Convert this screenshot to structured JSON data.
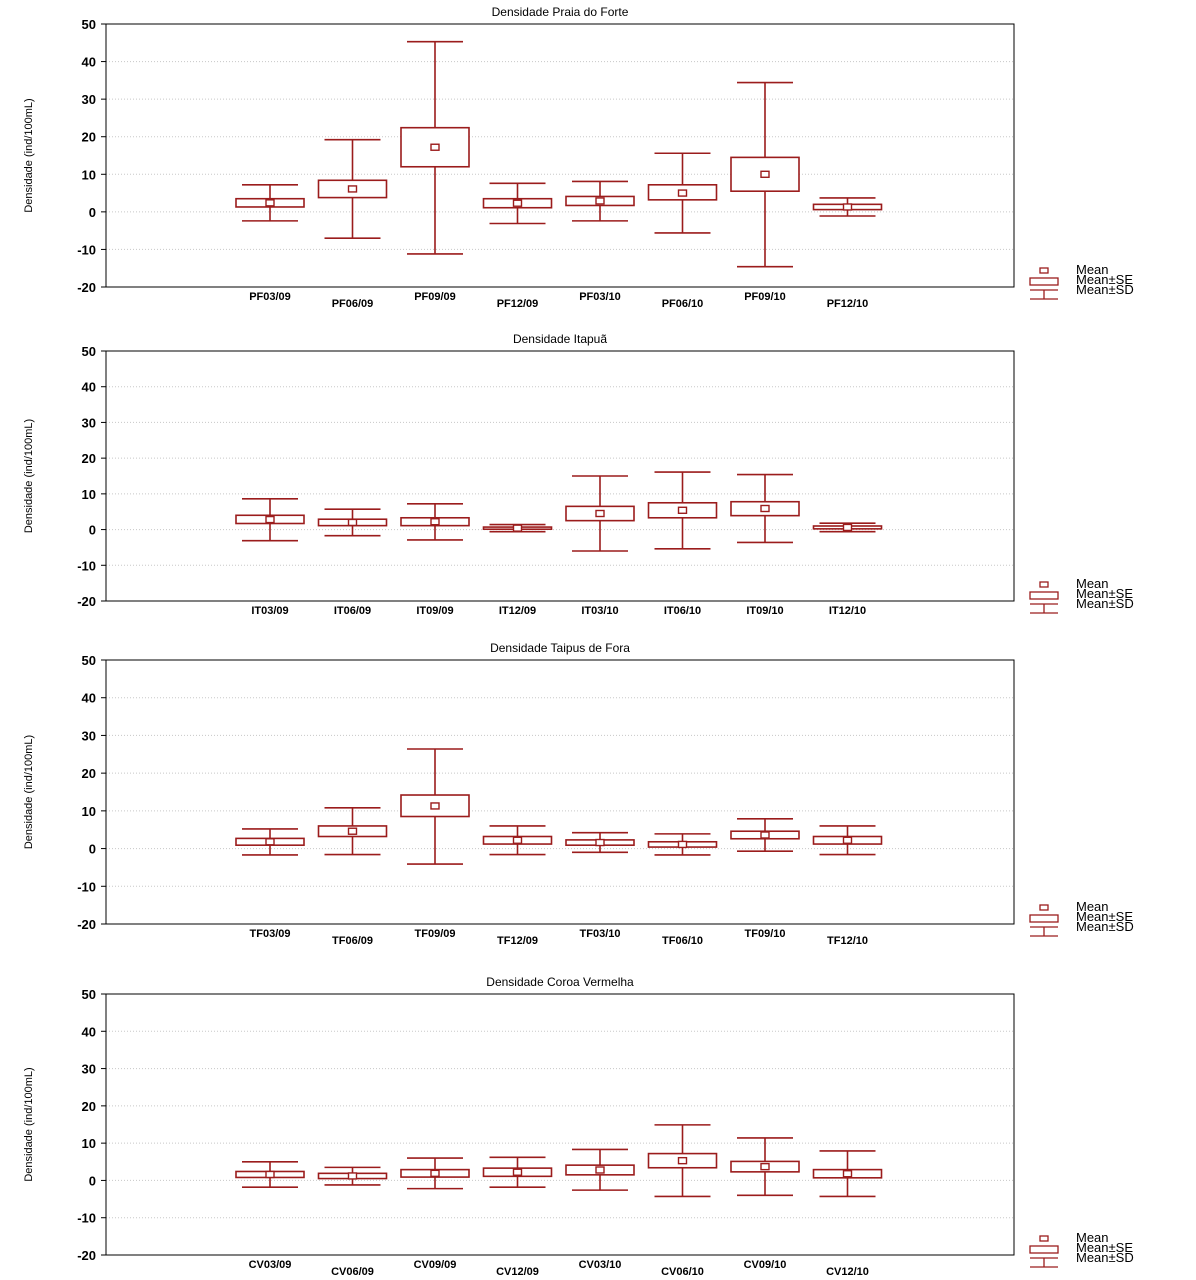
{
  "chart_data": [
    {
      "type": "box",
      "title": "Densidade Praia do Forte",
      "ylabel": "Densidade (ind/100mL)",
      "ylim": [
        -20,
        50
      ],
      "yticks": [
        -20,
        -10,
        0,
        10,
        20,
        30,
        40,
        50
      ],
      "categories": [
        "PF03/09",
        "PF06/09",
        "PF09/09",
        "PF12/09",
        "PF03/10",
        "PF06/10",
        "PF09/10",
        "PF12/10"
      ],
      "label_staggered": true,
      "grid": true,
      "legend_position": "bottom-right",
      "legend": [
        "Mean",
        "Mean±SE",
        "Mean±SD"
      ],
      "color": "#9b1c1c",
      "mean": [
        2.4,
        6.1,
        17.2,
        2.3,
        2.9,
        5.0,
        10.0,
        1.3
      ],
      "se_low": [
        1.3,
        3.8,
        12.0,
        1.1,
        1.7,
        3.2,
        5.5,
        0.6
      ],
      "se_high": [
        3.5,
        8.4,
        22.4,
        3.5,
        4.1,
        7.2,
        14.5,
        2.0
      ],
      "sd_low": [
        -2.4,
        -7.0,
        -11.2,
        -3.1,
        -2.4,
        -5.6,
        -14.6,
        -1.1
      ],
      "sd_high": [
        7.2,
        19.2,
        45.3,
        7.6,
        8.1,
        15.6,
        34.4,
        3.7
      ]
    },
    {
      "type": "box",
      "title": "Densidade Itapuã",
      "ylabel": "Densidade (ind/100mL)",
      "ylim": [
        -20,
        50
      ],
      "yticks": [
        -20,
        -10,
        0,
        10,
        20,
        30,
        40,
        50
      ],
      "categories": [
        "IT03/09",
        "IT06/09",
        "IT09/09",
        "IT12/09",
        "IT03/10",
        "IT06/10",
        "IT09/10",
        "IT12/10"
      ],
      "label_staggered": false,
      "grid": true,
      "legend_position": "bottom-right",
      "legend": [
        "Mean",
        "Mean±SE",
        "Mean±SD"
      ],
      "color": "#9b1c1c",
      "mean": [
        2.8,
        2.0,
        2.2,
        0.4,
        4.5,
        5.4,
        5.9,
        0.6
      ],
      "se_low": [
        1.7,
        1.1,
        1.1,
        0.1,
        2.5,
        3.3,
        3.9,
        0.2
      ],
      "se_high": [
        4.0,
        2.9,
        3.3,
        0.7,
        6.5,
        7.5,
        7.8,
        1.0
      ],
      "sd_low": [
        -3.1,
        -1.7,
        -2.9,
        -0.6,
        -6.0,
        -5.4,
        -3.6,
        -0.6
      ],
      "sd_high": [
        8.6,
        5.7,
        7.2,
        1.4,
        15.0,
        16.1,
        15.4,
        1.8
      ]
    },
    {
      "type": "box",
      "title": "Densidade Taipus de Fora",
      "ylabel": "Densidade (ind/100mL)",
      "ylim": [
        -20,
        50
      ],
      "yticks": [
        -20,
        -10,
        0,
        10,
        20,
        30,
        40,
        50
      ],
      "categories": [
        "TF03/09",
        "TF06/09",
        "TF09/09",
        "TF12/09",
        "TF03/10",
        "TF06/10",
        "TF09/10",
        "TF12/10"
      ],
      "label_staggered": true,
      "grid": true,
      "legend_position": "bottom-right",
      "legend": [
        "Mean",
        "Mean±SE",
        "Mean±SD"
      ],
      "color": "#9b1c1c",
      "mean": [
        1.8,
        4.6,
        11.3,
        2.2,
        1.6,
        1.1,
        3.6,
        2.2
      ],
      "se_low": [
        0.9,
        3.2,
        8.5,
        1.2,
        0.9,
        0.4,
        2.6,
        1.2
      ],
      "se_high": [
        2.7,
        6.0,
        14.2,
        3.2,
        2.3,
        1.8,
        4.6,
        3.2
      ],
      "sd_low": [
        -1.7,
        -1.6,
        -4.1,
        -1.6,
        -1.0,
        -1.7,
        -0.7,
        -1.6
      ],
      "sd_high": [
        5.2,
        10.8,
        26.4,
        6.0,
        4.2,
        3.9,
        7.9,
        6.0
      ]
    },
    {
      "type": "box",
      "title": "Densidade Coroa Vermelha",
      "ylabel": "Densidade (ind/100mL)",
      "ylim": [
        -20,
        50
      ],
      "yticks": [
        -20,
        -10,
        0,
        10,
        20,
        30,
        40,
        50
      ],
      "categories": [
        "CV03/09",
        "CV06/09",
        "CV09/09",
        "CV12/09",
        "CV03/10",
        "CV06/10",
        "CV09/10",
        "CV12/10"
      ],
      "label_staggered": true,
      "grid": true,
      "legend_position": "bottom-right",
      "legend": [
        "Mean",
        "Mean±SE",
        "Mean±SD"
      ],
      "color": "#9b1c1c",
      "mean": [
        1.6,
        1.2,
        1.9,
        2.2,
        2.8,
        5.3,
        3.7,
        1.8
      ],
      "se_low": [
        0.8,
        0.5,
        0.9,
        1.1,
        1.5,
        3.4,
        2.3,
        0.7
      ],
      "se_high": [
        2.4,
        1.9,
        2.9,
        3.3,
        4.1,
        7.2,
        5.1,
        2.9
      ],
      "sd_low": [
        -1.8,
        -1.2,
        -2.2,
        -1.8,
        -2.6,
        -4.3,
        -4.0,
        -4.3
      ],
      "sd_high": [
        5.0,
        3.5,
        6.0,
        6.2,
        8.3,
        14.9,
        11.4,
        7.9
      ]
    }
  ]
}
